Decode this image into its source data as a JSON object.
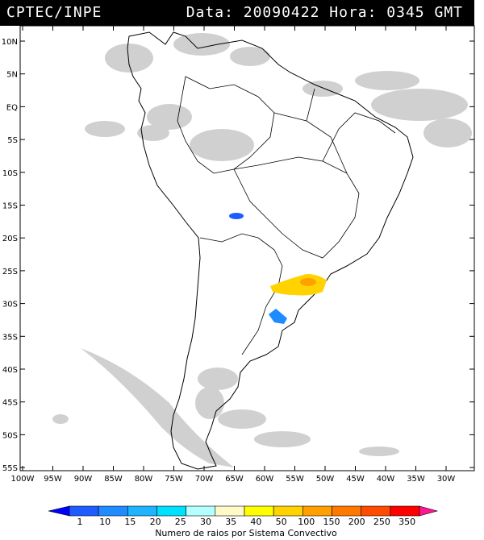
{
  "header": {
    "source": "CPTEC/INPE",
    "datetime": "Data: 20090422 Hora: 0345 GMT"
  },
  "map": {
    "lat_ticks": [
      "10N",
      "5N",
      "EQ",
      "5S",
      "10S",
      "15S",
      "20S",
      "25S",
      "30S",
      "35S",
      "40S",
      "45S",
      "50S",
      "55S"
    ],
    "lon_ticks": [
      "100W",
      "95W",
      "90W",
      "85W",
      "80W",
      "75W",
      "70W",
      "65W",
      "60W",
      "55W",
      "50W",
      "45W",
      "40W",
      "35W",
      "30W"
    ]
  },
  "colorbar": {
    "values": [
      "1",
      "10",
      "15",
      "20",
      "25",
      "30",
      "35",
      "40",
      "50",
      "100",
      "150",
      "200",
      "250",
      "350"
    ],
    "colors": [
      "#0000ff",
      "#1e5cff",
      "#1e8cff",
      "#1eb4ff",
      "#00e0ff",
      "#b4ffff",
      "#fffac8",
      "#ffff00",
      "#ffd200",
      "#ffa000",
      "#ff7800",
      "#ff4b00",
      "#ff0000",
      "#ff1493"
    ],
    "title": "Numero de raios por Sistema Convectivo"
  }
}
